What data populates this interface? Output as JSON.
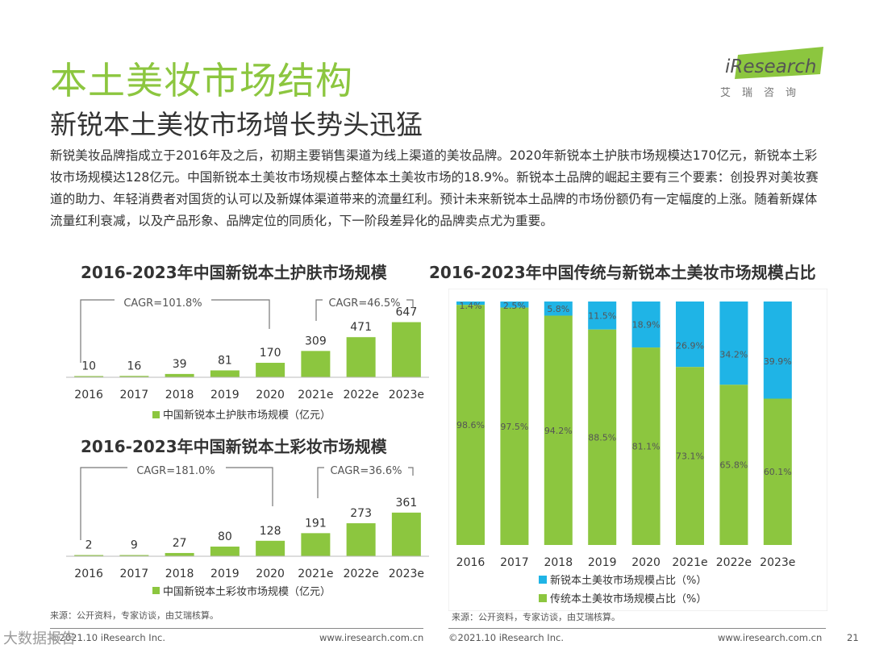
{
  "header": {
    "title": "本土美妆市场结构",
    "subtitle": "新锐本土美妆市场增长势头迅猛",
    "body": "新锐美妆品牌指成立于2016年及之后，初期主要销售渠道为线上渠道的美妆品牌。2020年新锐本土护肤市场规模达170亿元，新锐本土彩妆市场规模达128亿元。中国新锐本土美妆市场规模占整体本土美妆市场的18.9%。新锐本土品牌的崛起主要有三个要素：创投界对美妆赛道的助力、年轻消费者对国货的认可以及新媒体渠道带来的流量红利。预计未来新锐本土品牌的市场份额仍有一定幅度的上涨。随着新媒体流量红利衰减，以及产品形象、品牌定位的同质化，下一阶段差异化的品牌卖点尤为重要。"
  },
  "logo": {
    "brand": "iResearch",
    "cn": "艾瑞咨询"
  },
  "colors": {
    "accent": "#8cc63f",
    "blue": "#1fb4e6",
    "text": "#333333"
  },
  "chart_data": [
    {
      "type": "bar",
      "title": "2016-2023年中国新锐本土护肤市场规模",
      "categories": [
        "2016",
        "2017",
        "2018",
        "2019",
        "2020",
        "2021e",
        "2022e",
        "2023e"
      ],
      "series": [
        {
          "name": "中国新锐本土护肤市场规模（亿元）",
          "values": [
            10,
            16,
            39,
            81,
            170,
            309,
            471,
            647
          ]
        }
      ],
      "annotations": [
        "CAGR=101.8%",
        "CAGR=46.5%"
      ],
      "ylim": [
        0,
        700
      ]
    },
    {
      "type": "bar",
      "title": "2016-2023年中国新锐本土彩妆市场规模",
      "categories": [
        "2016",
        "2017",
        "2018",
        "2019",
        "2020",
        "2021e",
        "2022e",
        "2023e"
      ],
      "series": [
        {
          "name": "中国新锐本土彩妆市场规模（亿元）",
          "values": [
            2,
            9,
            27,
            80,
            128,
            191,
            273,
            361
          ]
        }
      ],
      "annotations": [
        "CAGR=181.0%",
        "CAGR=36.6%"
      ],
      "ylim": [
        0,
        400
      ]
    },
    {
      "type": "bar",
      "stacked": true,
      "title": "2016-2023年中国传统与新锐本土美妆市场规模占比",
      "categories": [
        "2016",
        "2017",
        "2018",
        "2019",
        "2020",
        "2021e",
        "2022e",
        "2023e"
      ],
      "series": [
        {
          "name": "新锐本土美妆市场规模占比（%）",
          "values": [
            1.4,
            2.5,
            5.8,
            11.5,
            18.9,
            26.9,
            34.2,
            39.9
          ],
          "labels": [
            "1.4%",
            "2.5%",
            "5.8%",
            "11.5%",
            "18.9%",
            "26.9%",
            "34.2%",
            "39.9%"
          ]
        },
        {
          "name": "传统本土美妆市场规模占比（%）",
          "values": [
            98.6,
            97.5,
            94.2,
            88.5,
            81.1,
            73.1,
            65.8,
            60.1
          ],
          "labels": [
            "98.6%",
            "97.5%",
            "94.2%",
            "88.5%",
            "81.1%",
            "73.1%",
            "65.8%",
            "60.1%"
          ]
        }
      ],
      "ylim": [
        0,
        100
      ]
    }
  ],
  "footer": {
    "source_left": "来源：公开资料，专家访谈，由艾瑞核算。",
    "source_right": "来源：公开资料，专家访谈，由艾瑞核算。",
    "copyright_left": "©2021.10 iResearch Inc.",
    "url_left": "www.iresearch.com.cn",
    "copyright_right": "©2021.10 iResearch Inc.",
    "url_right": "www.iresearch.com.cn",
    "page_number": "21",
    "watermark": "大数据报告"
  }
}
